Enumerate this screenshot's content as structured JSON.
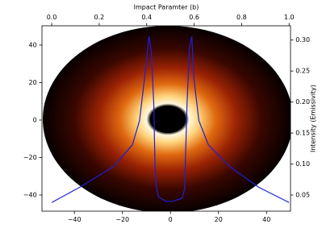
{
  "chart_data": {
    "type": "line",
    "x2label": "Impact Paramter (b)",
    "y2label": "Intensity (Emissivity)",
    "xlim": [
      -53.5,
      50
    ],
    "ylim": [
      -48.6,
      50.3
    ],
    "xticks": [
      {
        "value": -40,
        "label": "−40"
      },
      {
        "value": -20,
        "label": "−20"
      },
      0,
      20,
      40
    ],
    "yticks": [
      {
        "value": -40,
        "label": "−40"
      },
      {
        "value": -20,
        "label": "−20"
      },
      0,
      20,
      40
    ],
    "x2lim": [
      -0.041,
      1.006
    ],
    "x2ticks": [
      {
        "value": 0,
        "label": "0.0"
      },
      0.2,
      0.4,
      0.6,
      0.8,
      {
        "value": 1,
        "label": "1.0"
      }
    ],
    "y2lim": [
      0.024,
      0.323
    ],
    "y2ticks": [
      0.05,
      {
        "value": 0.1,
        "label": "0.10"
      },
      0.15,
      {
        "value": 0.2,
        "label": "0.20"
      },
      0.25,
      {
        "value": 0.3,
        "label": "0.30"
      }
    ],
    "series": [
      {
        "color": "#1f1fd6",
        "axis": "y2",
        "x": [
          0.0,
          0.12,
          0.26,
          0.34,
          0.37,
          0.39,
          0.41,
          0.42,
          0.43,
          0.435,
          0.44,
          0.45,
          0.48,
          0.51,
          0.55,
          0.56,
          0.57,
          0.58,
          0.59,
          0.6,
          0.62,
          0.66,
          0.75,
          0.87,
          1.0
        ],
        "values": [
          0.038,
          0.063,
          0.096,
          0.131,
          0.17,
          0.235,
          0.306,
          0.28,
          0.196,
          0.1,
          0.066,
          0.047,
          0.04,
          0.04,
          0.045,
          0.06,
          0.196,
          0.287,
          0.306,
          0.235,
          0.17,
          0.131,
          0.096,
          0.063,
          0.038
        ]
      }
    ]
  }
}
